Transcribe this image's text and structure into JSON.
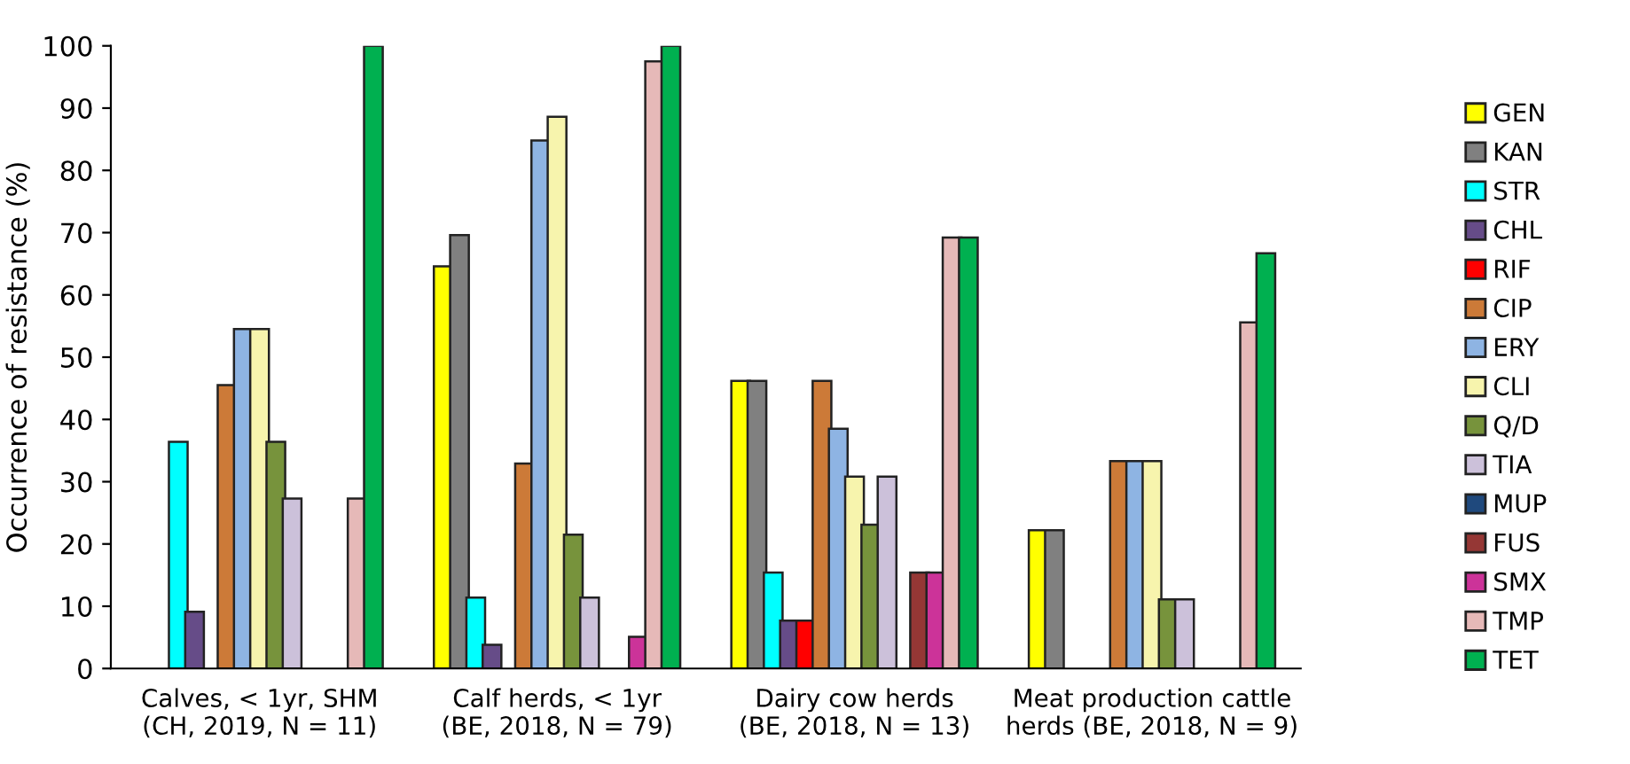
{
  "chart_data": {
    "type": "bar",
    "ylabel": "Occurrence of resistance (%)",
    "categories": [
      "Calves, < 1yr, SHM\n(CH, 2019, N = 11)",
      "Calf herds, < 1yr\n(BE, 2018, N = 79)",
      "Dairy cow herds\n(BE, 2018, N = 13)",
      "Meat production cattle\nherds (BE, 2018, N = 9)"
    ],
    "series": [
      {
        "name": "GEN",
        "color": "#ffff00",
        "values": [
          null,
          64.6,
          46.2,
          22.2
        ]
      },
      {
        "name": "KAN",
        "color": "#808080",
        "values": [
          null,
          69.6,
          46.2,
          22.2
        ]
      },
      {
        "name": "STR",
        "color": "#00ffff",
        "values": [
          36.4,
          11.4,
          15.4,
          null
        ]
      },
      {
        "name": "CHL",
        "color": "#664c88",
        "values": [
          9.1,
          3.8,
          7.7,
          null
        ]
      },
      {
        "name": "RIF",
        "color": "#ff0000",
        "values": [
          null,
          null,
          7.7,
          null
        ]
      },
      {
        "name": "CIP",
        "color": "#cc7a38",
        "values": [
          45.5,
          32.9,
          46.2,
          33.3
        ]
      },
      {
        "name": "ERY",
        "color": "#8eb4e3",
        "values": [
          54.5,
          84.8,
          38.5,
          33.3
        ]
      },
      {
        "name": "CLI",
        "color": "#f7f4ad",
        "values": [
          54.5,
          88.6,
          30.8,
          33.3
        ]
      },
      {
        "name": "Q/D",
        "color": "#77933c",
        "values": [
          36.4,
          21.5,
          23.1,
          11.1
        ]
      },
      {
        "name": "TIA",
        "color": "#ccc1da",
        "values": [
          27.3,
          11.4,
          30.8,
          11.1
        ]
      },
      {
        "name": "MUP",
        "color": "#1f497d",
        "values": [
          null,
          null,
          null,
          null
        ]
      },
      {
        "name": "FUS",
        "color": "#953735",
        "values": [
          null,
          null,
          15.4,
          null
        ]
      },
      {
        "name": "SMX",
        "color": "#cc3399",
        "values": [
          null,
          5.1,
          15.4,
          null
        ]
      },
      {
        "name": "TMP",
        "color": "#e6b9b8",
        "values": [
          27.3,
          97.5,
          69.2,
          55.6
        ]
      },
      {
        "name": "TET",
        "color": "#00b050",
        "values": [
          100,
          100,
          69.2,
          66.7
        ]
      }
    ],
    "ylim": [
      0,
      100
    ],
    "yticks": [
      0,
      10,
      20,
      30,
      40,
      50,
      60,
      70,
      80,
      90,
      100
    ],
    "grid": false,
    "legend": "right"
  }
}
